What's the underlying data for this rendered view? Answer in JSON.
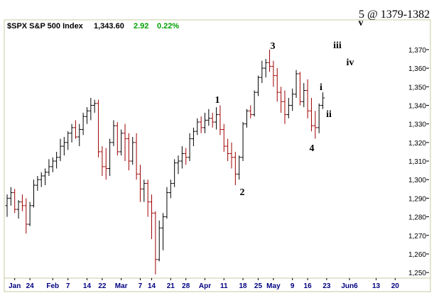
{
  "chart_data": {
    "type": "ohlc",
    "title": "$SPX S&P 500 Index",
    "last": "1,343.60",
    "change": "2.92",
    "change_pct": "0.22%",
    "note": "5 @ 1379-1382",
    "annotations": [
      "1",
      "2",
      "3",
      "4",
      "i",
      "ii",
      "iii",
      "iv",
      "v"
    ],
    "up_color": "#000000",
    "down_color": "#a00000",
    "header_value_color": "#00a000",
    "open": [
      1286,
      1290,
      1293,
      1284,
      1288,
      1286,
      1276,
      1286,
      1297,
      1300,
      1302,
      1304,
      1307,
      1310,
      1312,
      1318,
      1320,
      1325,
      1328,
      1323,
      1327,
      1334,
      1337,
      1340,
      1341,
      1315,
      1307,
      1306,
      1320,
      1329,
      1315,
      1325,
      1322,
      1310,
      1320,
      1303,
      1295,
      1298,
      1288,
      1282,
      1257,
      1274,
      1280,
      1293,
      1298,
      1309,
      1310,
      1314,
      1312,
      1322,
      1326,
      1331,
      1328,
      1332,
      1333,
      1331,
      1335,
      1327,
      1318,
      1314,
      1312,
      1303,
      1312,
      1330,
      1337,
      1335,
      1347,
      1355,
      1360,
      1363,
      1361,
      1356,
      1347,
      1342,
      1335,
      1340,
      1346,
      1357,
      1342,
      1348,
      1337,
      1329,
      1328,
      1340
    ],
    "high": [
      1292,
      1296,
      1295,
      1289,
      1292,
      1290,
      1288,
      1300,
      1302,
      1304,
      1306,
      1311,
      1312,
      1315,
      1322,
      1323,
      1326,
      1330,
      1332,
      1330,
      1336,
      1339,
      1344,
      1343,
      1343,
      1318,
      1317,
      1322,
      1332,
      1331,
      1327,
      1330,
      1325,
      1323,
      1325,
      1308,
      1300,
      1300,
      1292,
      1283,
      1278,
      1282,
      1296,
      1300,
      1311,
      1313,
      1318,
      1317,
      1325,
      1328,
      1333,
      1334,
      1336,
      1338,
      1336,
      1339,
      1340,
      1330,
      1322,
      1320,
      1315,
      1313,
      1331,
      1338,
      1340,
      1348,
      1356,
      1364,
      1365,
      1370,
      1364,
      1360,
      1350,
      1348,
      1344,
      1349,
      1359,
      1358,
      1352,
      1354,
      1344,
      1337,
      1341,
      1347
    ],
    "low": [
      1280,
      1286,
      1282,
      1279,
      1283,
      1271,
      1275,
      1285,
      1294,
      1296,
      1297,
      1302,
      1304,
      1306,
      1310,
      1313,
      1316,
      1320,
      1322,
      1318,
      1324,
      1330,
      1332,
      1336,
      1312,
      1302,
      1300,
      1302,
      1318,
      1313,
      1313,
      1310,
      1305,
      1308,
      1300,
      1288,
      1288,
      1280,
      1268,
      1249,
      1256,
      1262,
      1279,
      1290,
      1296,
      1303,
      1306,
      1308,
      1310,
      1318,
      1324,
      1325,
      1325,
      1329,
      1328,
      1327,
      1324,
      1315,
      1310,
      1306,
      1297,
      1300,
      1310,
      1328,
      1333,
      1334,
      1345,
      1352,
      1355,
      1358,
      1350,
      1342,
      1336,
      1330,
      1333,
      1337,
      1344,
      1340,
      1339,
      1333,
      1326,
      1322,
      1325,
      1338
    ],
    "close": [
      1290,
      1293,
      1284,
      1288,
      1286,
      1276,
      1286,
      1297,
      1300,
      1302,
      1304,
      1307,
      1310,
      1312,
      1318,
      1320,
      1325,
      1328,
      1323,
      1327,
      1334,
      1337,
      1340,
      1341,
      1315,
      1307,
      1306,
      1320,
      1329,
      1315,
      1325,
      1322,
      1310,
      1320,
      1303,
      1295,
      1298,
      1288,
      1282,
      1257,
      1274,
      1280,
      1293,
      1298,
      1309,
      1310,
      1314,
      1312,
      1322,
      1326,
      1331,
      1328,
      1332,
      1333,
      1331,
      1335,
      1327,
      1318,
      1314,
      1312,
      1303,
      1312,
      1330,
      1337,
      1335,
      1347,
      1355,
      1360,
      1363,
      1361,
      1356,
      1347,
      1342,
      1335,
      1340,
      1346,
      1357,
      1342,
      1348,
      1337,
      1329,
      1328,
      1340,
      1344
    ],
    "xlim": [
      0,
      104
    ],
    "xticks": [
      {
        "value": 2,
        "label": "Jan"
      },
      {
        "value": 6,
        "label": "24"
      },
      {
        "value": 12,
        "label": "Feb"
      },
      {
        "value": 16,
        "label": "7"
      },
      {
        "value": 21,
        "label": "14"
      },
      {
        "value": 25,
        "label": "22"
      },
      {
        "value": 30,
        "label": "Mar"
      },
      {
        "value": 35,
        "label": "7"
      },
      {
        "value": 38,
        "label": "14"
      },
      {
        "value": 43,
        "label": "21"
      },
      {
        "value": 47,
        "label": "28"
      },
      {
        "value": 52,
        "label": "Apr"
      },
      {
        "value": 57,
        "label": "11"
      },
      {
        "value": 62,
        "label": "18"
      },
      {
        "value": 66,
        "label": "25"
      },
      {
        "value": 70,
        "label": "May"
      },
      {
        "value": 75,
        "label": "9"
      },
      {
        "value": 79,
        "label": "16"
      },
      {
        "value": 84,
        "label": "23"
      },
      {
        "value": 90,
        "label": "Jun6"
      },
      {
        "value": 97,
        "label": "13"
      },
      {
        "value": 102,
        "label": "20"
      }
    ],
    "ylim": [
      1247,
      1386
    ],
    "yticks": [
      {
        "value": 1250,
        "label": "1,250"
      },
      {
        "value": 1260,
        "label": "1,260"
      },
      {
        "value": 1270,
        "label": "1,270"
      },
      {
        "value": 1280,
        "label": "1,280"
      },
      {
        "value": 1290,
        "label": "1,290"
      },
      {
        "value": 1300,
        "label": "1,300"
      },
      {
        "value": 1310,
        "label": "1,310"
      },
      {
        "value": 1320,
        "label": "1,320"
      },
      {
        "value": 1330,
        "label": "1,330"
      },
      {
        "value": 1340,
        "label": "1,340"
      },
      {
        "value": 1350,
        "label": "1,350"
      },
      {
        "value": 1360,
        "label": "1,360"
      },
      {
        "value": 1370,
        "label": "1,370"
      }
    ]
  }
}
